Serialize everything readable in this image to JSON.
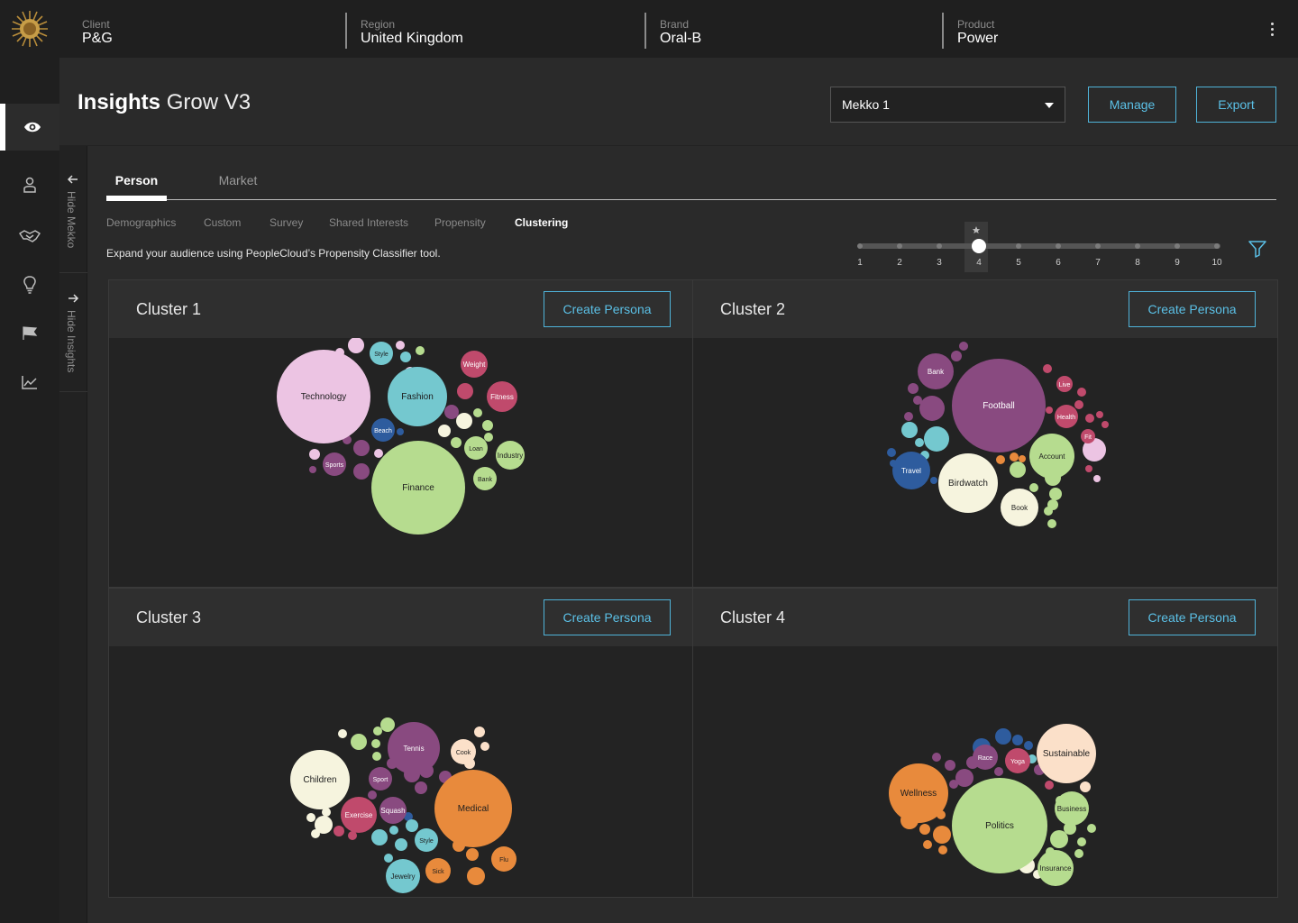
{
  "context": [
    {
      "label": "Client",
      "value": "P&G"
    },
    {
      "label": "Region",
      "value": "United Kingdom"
    },
    {
      "label": "Brand",
      "value": "Oral-B"
    },
    {
      "label": "Product",
      "value": "Power"
    }
  ],
  "page": {
    "title_bold": "Insights",
    "title_light": "Grow V3"
  },
  "selector": {
    "value": "Mekko 1"
  },
  "actions": {
    "manage": "Manage",
    "export": "Export"
  },
  "toggles": {
    "hide_mekko": "Hide Mekko",
    "hide_insights": "Hide Insights"
  },
  "tabs": [
    "Person",
    "Market"
  ],
  "subtabs": [
    "Demographics",
    "Custom",
    "Survey",
    "Shared Interests",
    "Propensity",
    "Clustering"
  ],
  "hint": "Expand your audience using PeopleCloud’s Propensity Classifier tool.",
  "slider": {
    "labels": [
      "1",
      "2",
      "3",
      "4",
      "5",
      "6",
      "7",
      "8",
      "9",
      "10"
    ],
    "value": 4
  },
  "create_label": "Create Persona",
  "colors": {
    "pink": "#ecc4e3",
    "teal": "#74c8cf",
    "navy": "#2e5c9e",
    "green": "#b6dc8f",
    "purple": "#894a80",
    "rose": "#c04a6c",
    "orange": "#e88a3c",
    "cream": "#f6f4de",
    "peach": "#fbe0c9",
    "accent": "#5bc0e6"
  },
  "clusters": [
    {
      "title": "Cluster 1",
      "bubbles": [
        {
          "label": "Technology",
          "color": "pink",
          "r": 52
        },
        {
          "label": "Fashion",
          "color": "teal",
          "r": 33
        },
        {
          "label": "Finance",
          "color": "green",
          "r": 52
        },
        {
          "label": "Beach",
          "color": "navy",
          "r": 13
        },
        {
          "label": "Style",
          "color": "teal",
          "r": 13
        },
        {
          "label": "Weight",
          "color": "rose",
          "r": 15
        },
        {
          "label": "Fitness",
          "color": "rose",
          "r": 17
        },
        {
          "label": "Loan",
          "color": "green",
          "r": 13
        },
        {
          "label": "Industry",
          "color": "green",
          "r": 16
        },
        {
          "label": "Bank",
          "color": "green",
          "r": 13
        },
        {
          "label": "Sports",
          "color": "purple",
          "r": 13
        }
      ]
    },
    {
      "title": "Cluster 2",
      "bubbles": [
        {
          "label": "Football",
          "color": "purple",
          "r": 52
        },
        {
          "label": "Bank",
          "color": "purple",
          "r": 20
        },
        {
          "label": "Live",
          "color": "rose",
          "r": 9
        },
        {
          "label": "Health",
          "color": "rose",
          "r": 13
        },
        {
          "label": "Fit",
          "color": "rose",
          "r": 8
        },
        {
          "label": "Account",
          "color": "green",
          "r": 25
        },
        {
          "label": "Travel",
          "color": "navy",
          "r": 21
        },
        {
          "label": "Birdwatch",
          "color": "cream",
          "r": 33
        },
        {
          "label": "Book",
          "color": "cream",
          "r": 21
        }
      ]
    },
    {
      "title": "Cluster 3",
      "bubbles": [
        {
          "label": "Children",
          "color": "cream",
          "r": 33
        },
        {
          "label": "Tennis",
          "color": "purple",
          "r": 29
        },
        {
          "label": "Cook",
          "color": "peach",
          "r": 14
        },
        {
          "label": "Sport",
          "color": "purple",
          "r": 13
        },
        {
          "label": "Medical",
          "color": "orange",
          "r": 43
        },
        {
          "label": "Exercise",
          "color": "rose",
          "r": 20
        },
        {
          "label": "Squash",
          "color": "purple",
          "r": 15
        },
        {
          "label": "Style",
          "color": "teal",
          "r": 13
        },
        {
          "label": "Flu",
          "color": "orange",
          "r": 14
        },
        {
          "label": "Sick",
          "color": "orange",
          "r": 14
        },
        {
          "label": "Jewelry",
          "color": "teal",
          "r": 19
        }
      ]
    },
    {
      "title": "Cluster 4",
      "bubbles": [
        {
          "label": "Wellness",
          "color": "orange",
          "r": 33
        },
        {
          "label": "Politics",
          "color": "green",
          "r": 53
        },
        {
          "label": "Race",
          "color": "purple",
          "r": 14
        },
        {
          "label": "Yoga",
          "color": "rose",
          "r": 14
        },
        {
          "label": "Sustainable",
          "color": "peach",
          "r": 33
        },
        {
          "label": "Business",
          "color": "green",
          "r": 19
        },
        {
          "label": "Insurance",
          "color": "green",
          "r": 20
        }
      ]
    }
  ]
}
